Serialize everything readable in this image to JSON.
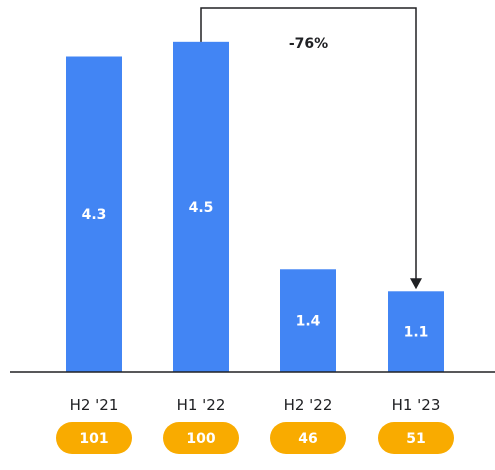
{
  "chart_data": {
    "type": "bar",
    "categories": [
      "H2 '21",
      "H1 '22",
      "H2 '22",
      "H1 '23"
    ],
    "values": [
      4.3,
      4.5,
      1.4,
      1.1
    ],
    "bar_labels": [
      "4.3",
      "4.5",
      "1.4",
      "1.1"
    ],
    "badges": [
      "101",
      "100",
      "46",
      "51"
    ],
    "annotation": {
      "text": "-76%",
      "from_category": "H1 '22",
      "to_category": "H1 '23"
    },
    "ylim": [
      0,
      5.07
    ],
    "grid": false,
    "title": "",
    "xlabel": "",
    "ylabel": ""
  },
  "colors": {
    "bar": "#4285f4",
    "badge": "#f9ab00",
    "axis": "#202124",
    "arrow": "#202124"
  }
}
